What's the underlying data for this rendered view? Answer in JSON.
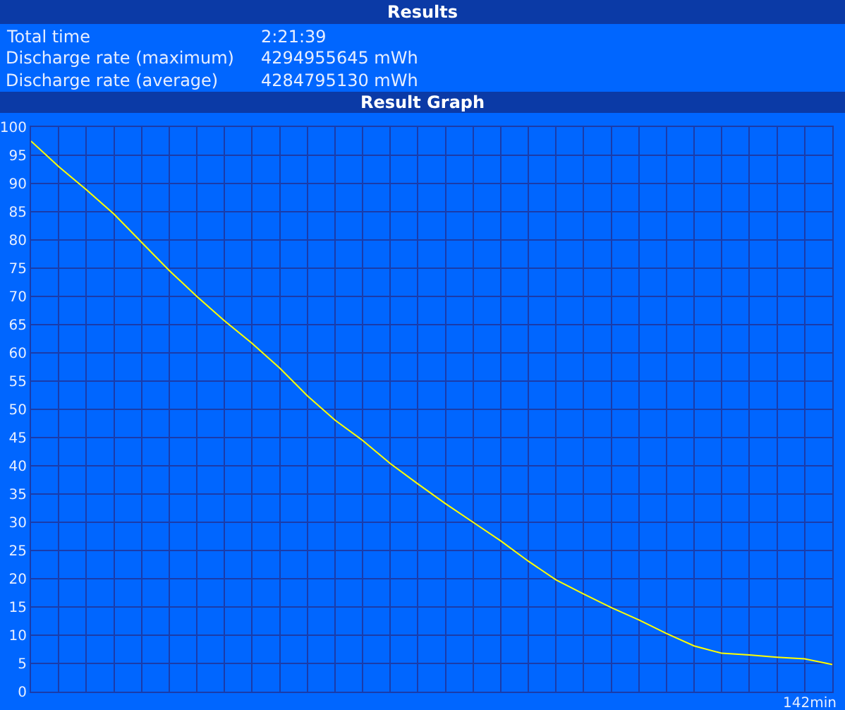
{
  "chart_data": {
    "type": "line",
    "title": "Result Graph",
    "annotations": [
      "Results",
      "Total time",
      "2:21:39",
      "Discharge rate (maximum)",
      "4294955645 mWh",
      "Discharge rate (average)",
      "4284795130 mWh",
      "142min"
    ],
    "categories": [
      null,
      null,
      null,
      null,
      null,
      null,
      null,
      null,
      null,
      null,
      null,
      null,
      null,
      null,
      null,
      null,
      null,
      null,
      null,
      null,
      null,
      null,
      null,
      null,
      null,
      null,
      null,
      null,
      null,
      null
    ],
    "series": [
      {
        "color": "#ffff00",
        "values": [
          97.5,
          93.0,
          88.9,
          84.6,
          79.6,
          74.6,
          70,
          65.7,
          61.7,
          57.3,
          52.4,
          48.1,
          44.5,
          40.4,
          36.8,
          33.3,
          30,
          26.7,
          23.1,
          19.8,
          17.3,
          14.9,
          12.7,
          10.3,
          8.1,
          6.8,
          6.5,
          6.1,
          5.8,
          4.8
        ]
      }
    ],
    "ylim": [
      0,
      100
    ],
    "yticks": [
      0,
      5,
      10,
      15,
      20,
      25,
      30,
      35,
      40,
      45,
      50,
      55,
      60,
      65,
      70,
      75,
      80,
      85,
      90,
      95,
      100
    ],
    "grid": true,
    "marker": "none",
    "line_style": "solid"
  }
}
